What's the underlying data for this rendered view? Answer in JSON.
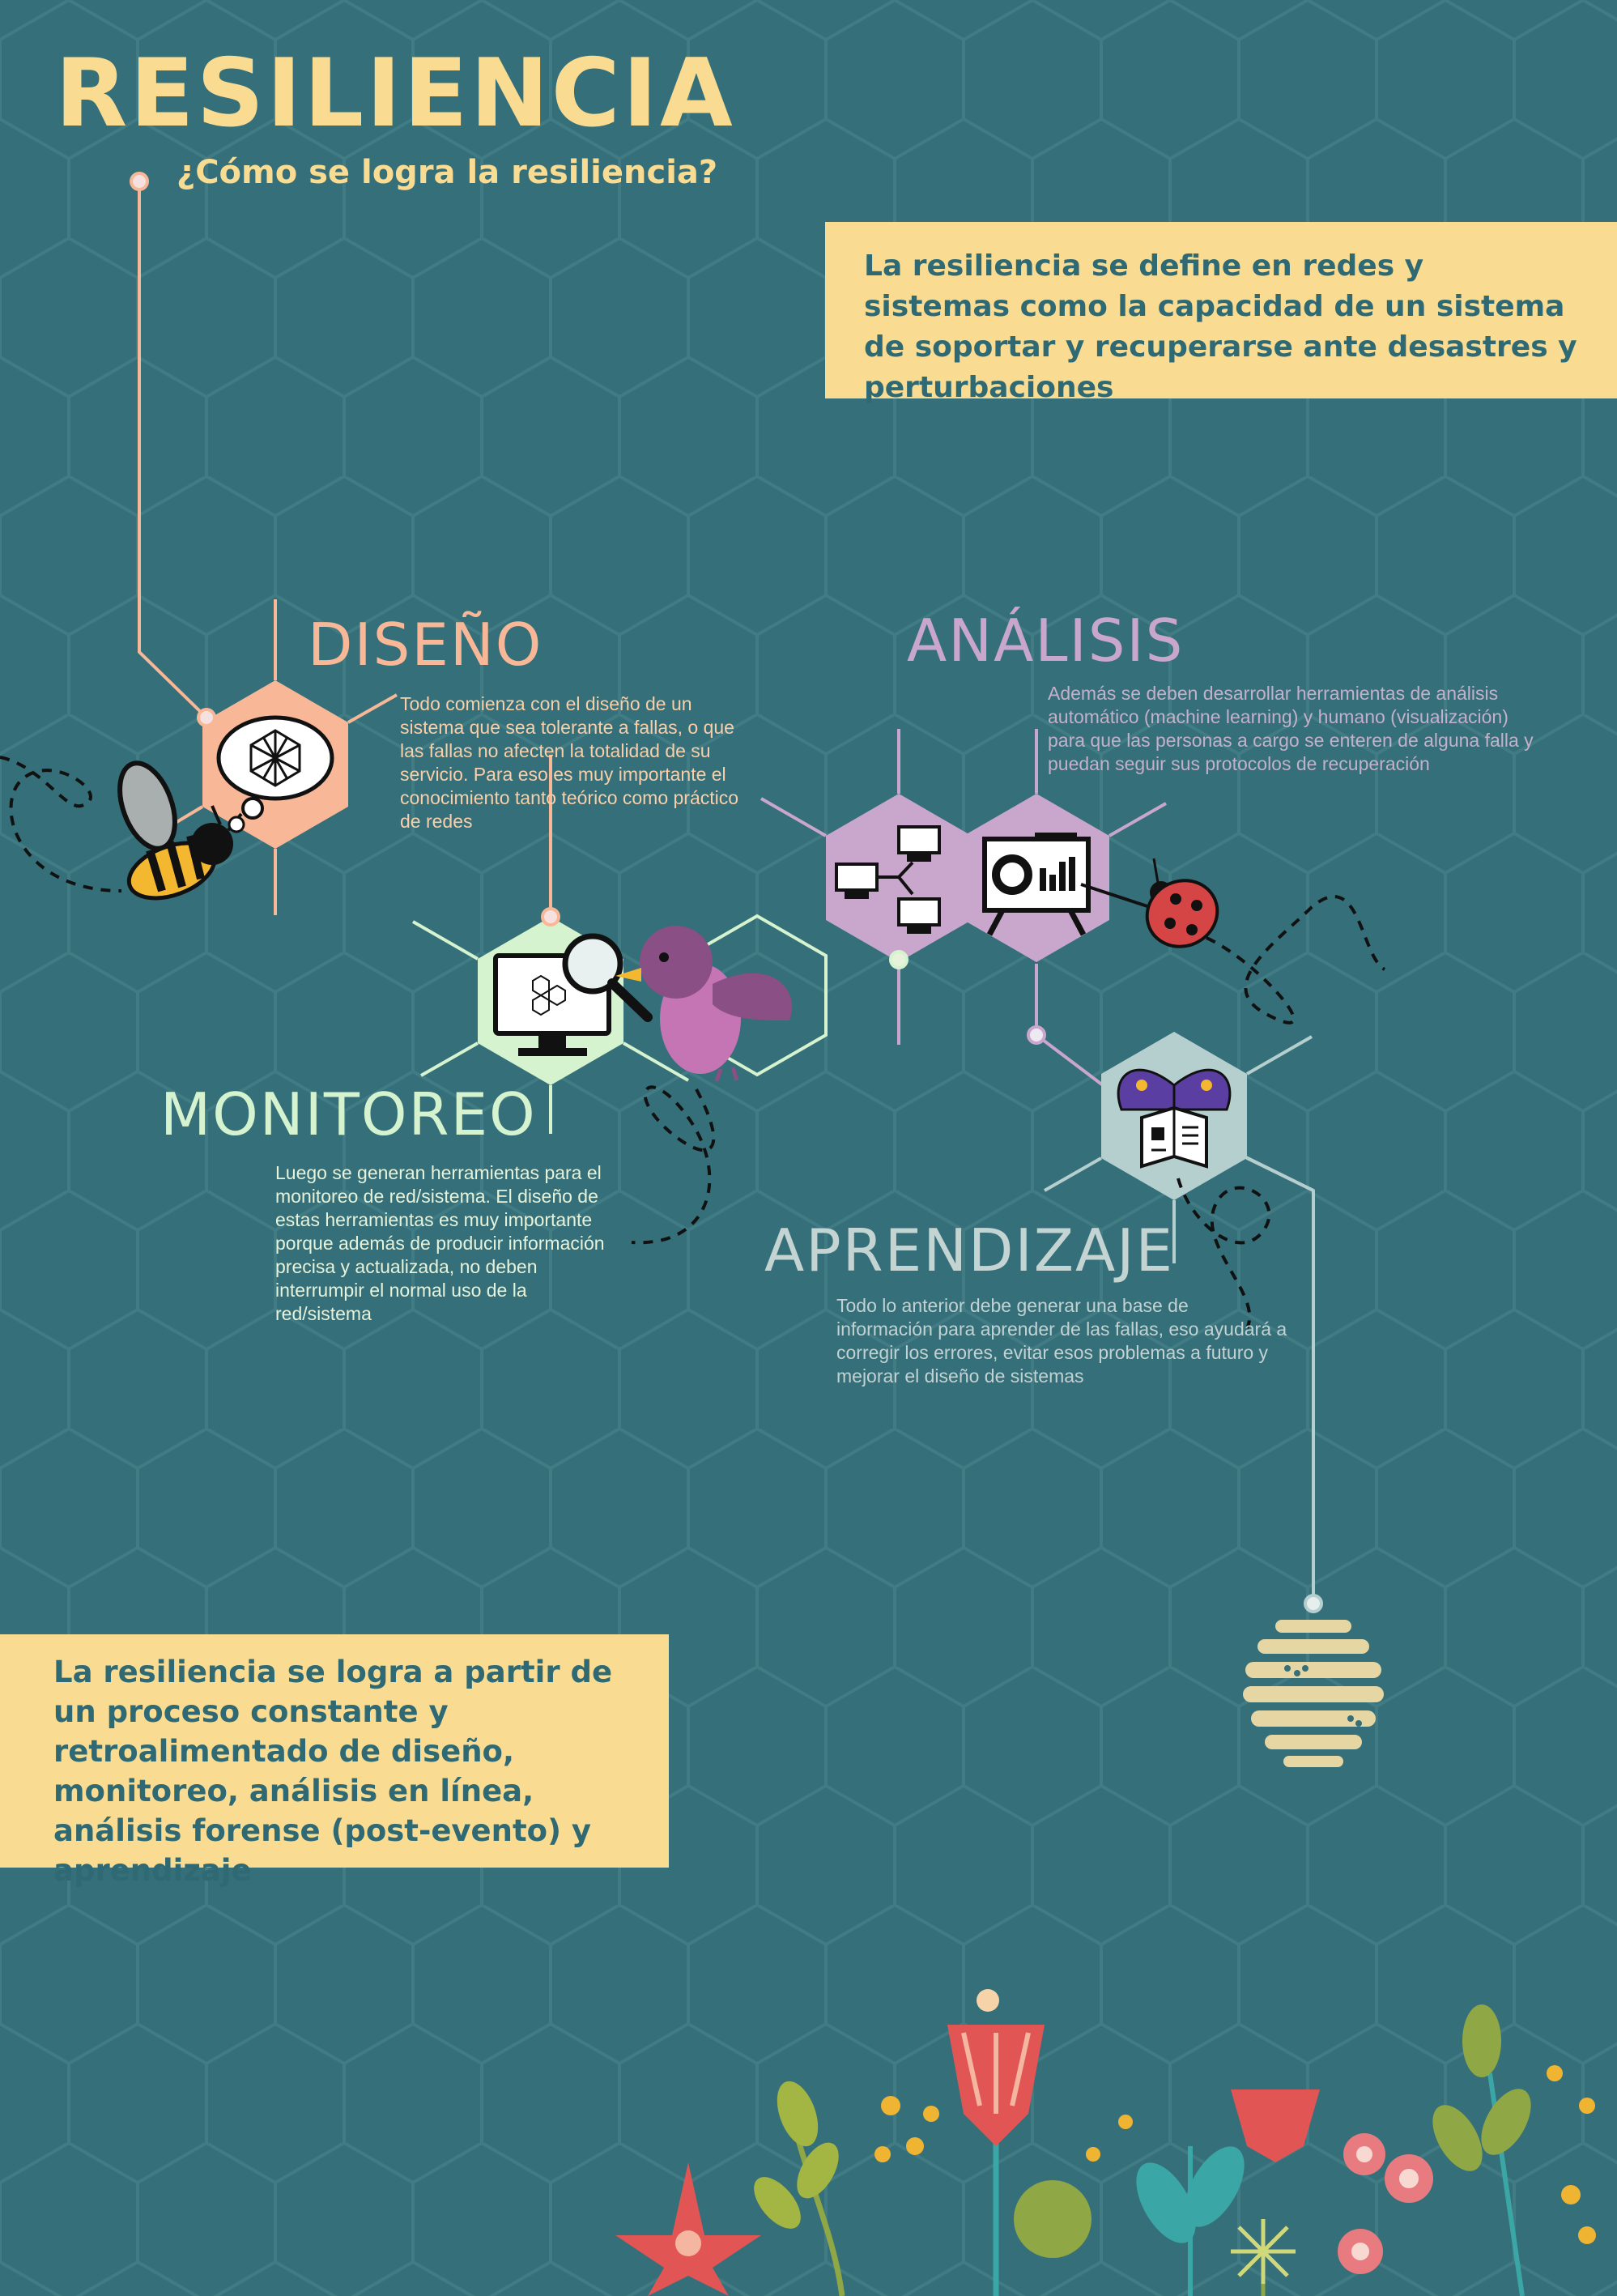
{
  "header": {
    "title": "RESILIENCIA",
    "subtitle": "¿Cómo se logra la resiliencia?"
  },
  "definition": "La resiliencia se define en redes y sistemas como la capacidad de un sistema de soportar y recuperarse ante desastres y perturbaciones",
  "sections": {
    "diseno": {
      "title": "DISEÑO",
      "text": "Todo comienza con el diseño de un sistema que sea tolerante a fallas, o que las fallas no afecten la totalidad de su servicio. Para eso es muy importante el conocimiento tanto teórico como práctico de redes"
    },
    "analisis": {
      "title": "ANÁLISIS",
      "text": "Además se deben desarrollar herramientas de análisis automático (machine learning) y humano (visualización) para que las personas a cargo se enteren de alguna falla y puedan seguir sus protocolos de recuperación"
    },
    "monitoreo": {
      "title": "MONITOREO",
      "text": "Luego se generan herramientas para el monitoreo de red/sistema. El diseño de estas herramientas es muy importante porque además de producir información precisa y actualizada, no deben interrumpir el normal uso de la red/sistema"
    },
    "aprendizaje": {
      "title": "APRENDIZAJE",
      "text": "Todo lo anterior debe generar una base de información para aprender de las fallas, eso ayudará a corregir los errores,  evitar esos problemas a futuro y mejorar el diseño de sistemas"
    }
  },
  "summary": "La resiliencia se logra a partir de un proceso constante y retroalimentado de diseño, monitoreo, análisis en línea, análisis forense (post-evento) y aprendizaje",
  "colors": {
    "background": "#356f79",
    "accent_yellow": "#f9dc92",
    "diseno": "#f8b796",
    "analisis": "#c9a7cc",
    "monitoreo": "#d6f3cf",
    "aprendizaje": "#b5cfcf"
  },
  "icons": [
    "network-thought-icon",
    "bee-icon",
    "monitor-magnifier-icon",
    "bird-icon",
    "network-computers-icon",
    "presentation-chart-icon",
    "ladybug-icon",
    "butterfly-reading-icon",
    "beehive-icon",
    "flowers-decoration"
  ]
}
